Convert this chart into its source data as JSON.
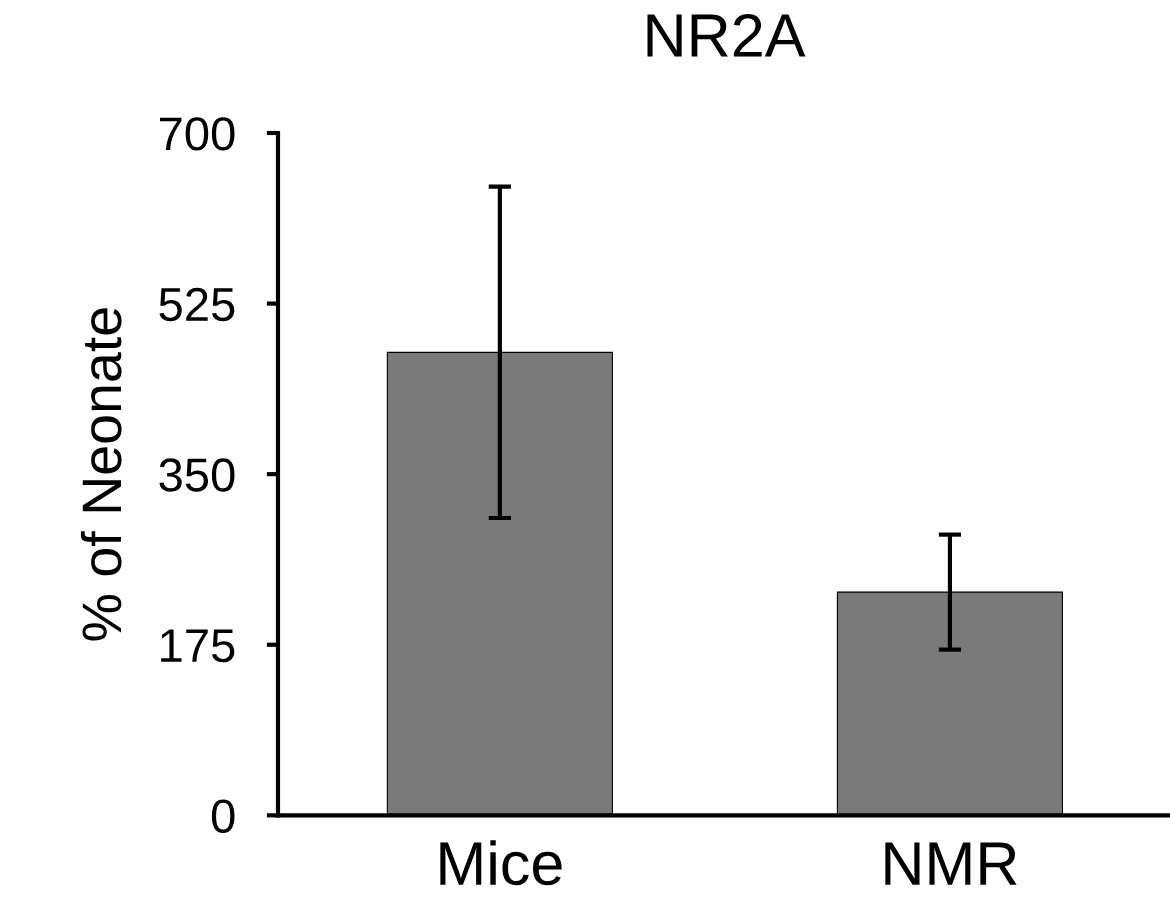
{
  "chart_data": {
    "type": "bar",
    "title": "NR2A",
    "ylabel": "% of Neonate",
    "categories": [
      "Mice",
      "NMR"
    ],
    "values": [
      475,
      229
    ],
    "errors": [
      170,
      59
    ],
    "color": "#7a7a7a",
    "ylim": [
      0,
      700
    ],
    "yticks": [
      0,
      175,
      350,
      525,
      700
    ],
    "grid": false,
    "legend": false
  }
}
